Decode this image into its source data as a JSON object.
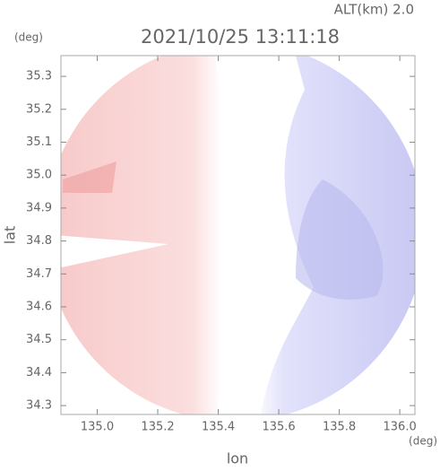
{
  "chart_data": {
    "type": "field",
    "title": "2021/10/25 13:11:18",
    "altitude_label": "ALT(km) 2.0",
    "y_unit": "(deg)",
    "x_unit": "(deg)",
    "xlabel": "lon",
    "ylabel": "lat",
    "xlim": [
      134.88,
      136.05
    ],
    "ylim": [
      34.273,
      35.363
    ],
    "xticks": [
      {
        "value": 135.0,
        "label": "135.0"
      },
      135.2,
      135.4,
      135.6,
      135.8,
      {
        "value": 136.0,
        "label": "136.0"
      }
    ],
    "yticks": [
      35.3,
      35.2,
      35.1,
      {
        "value": 35.0,
        "label": "35.0"
      },
      34.9,
      34.8,
      34.7,
      34.6,
      34.5,
      34.4,
      34.3
    ]
  }
}
